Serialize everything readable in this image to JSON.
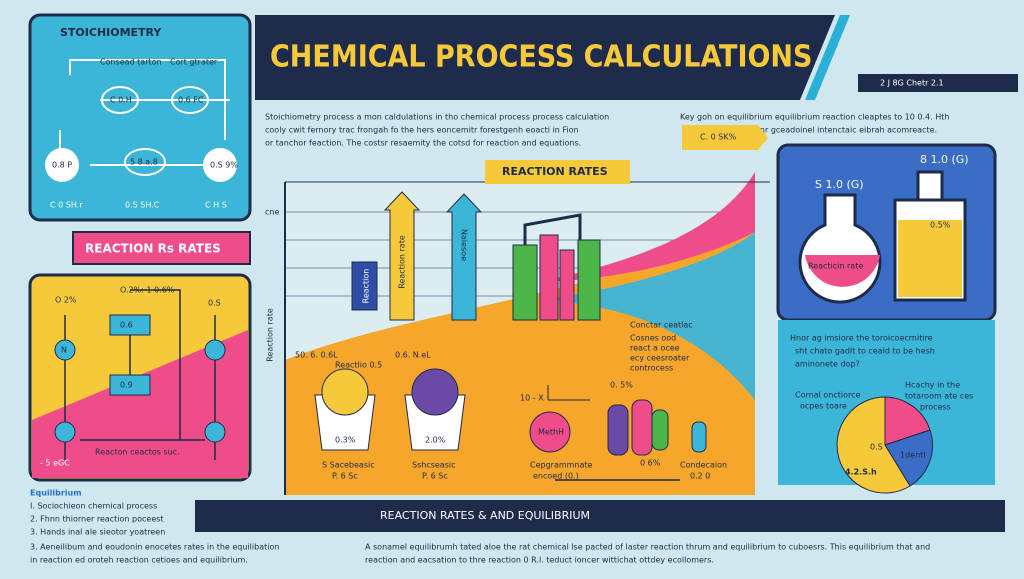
{
  "header": {
    "title": "CHEMICAL PROCESS CALCULATIONS",
    "tag": "2 J 8G Chetr 2.1"
  },
  "intro": {
    "lines": [
      "Stoichiometry process a mon caldulations in tho chemical process process calculation",
      "cooly cwit fernory trac frongah fo the hers eoncemitr forestgenh eoacti in Fion",
      "or tanchor feaction. The costsr resaemity the cotsd for reaction and equations."
    ]
  },
  "keynote": {
    "lines": [
      "Key goh on equilibrium equilibrium reaction cleaptes to 10 0.4. Hth",
      "beenr gceadoinel intenctaic eibrah acomreacte."
    ],
    "tag": "C. 0 SK%"
  },
  "stoichiometry": {
    "title": "STOICHIOMETRY",
    "labels": [
      "Consead tarton",
      "Cort gtrater",
      "C 0.H",
      "0.6 FC",
      "0.8 P",
      "5 8.a.8",
      "0.S 9%",
      "C 0 SH.r",
      "0.S SH.C",
      "C H S"
    ]
  },
  "reaction_box": {
    "title": "REACTION Rs RATES"
  },
  "left_panel": {
    "labels": [
      "O 2%",
      "O.2%: 1 0.6%",
      "0.S",
      "N",
      "0.6",
      "0.9",
      "- 5 eGC",
      "Reacton ceactos suc."
    ]
  },
  "chart": {
    "title": "REACTION RATES",
    "axis": "Reaction rate",
    "axis_top": "cne",
    "bar_labels": [
      "Reaction",
      "Reaction rate",
      "Naiesoe"
    ],
    "labels": [
      "Conctar ceatlac",
      "50. 6. 0.6L",
      "Reactlio 0.5",
      "0.6. N.eL",
      "0.3%",
      "2.0%",
      "S Sacebeasic",
      "P. 6 Sc",
      "Sshcseasic",
      "P. 6 Sc",
      "Cepgrammnate",
      "encoed (0.)",
      "Condecaion",
      "0.2 0",
      "Cosnes ood",
      "react a ocee",
      "ecy ceesroater",
      "controcess",
      "0. 5%",
      "MethH",
      "10 - X",
      "0 6%"
    ]
  },
  "flask_panel": {
    "labels": [
      "8 1.0 (G)",
      "S 1.0 (G)",
      "0.5%",
      "Reacticin rate"
    ]
  },
  "question": {
    "lines": [
      "Hnor ag imsiore the toroicoecrnitire",
      "sht chato gadlt to ceald to be hesh",
      "aminonete dop?"
    ]
  },
  "pie": {
    "labels": [
      "Cornal onctiorce",
      "ocpes toare",
      "Hcachy in the",
      "totaroom ate ces",
      "process",
      "0.S",
      "1dentl",
      "4.2.S.h"
    ]
  },
  "equilibrium": {
    "title": "Equilibrium",
    "items": [
      "I. Sociochieon chemical process",
      "2. Fhnn thiorner reaction poceest",
      "3. Hands inal ale sieotor yoatreen",
      "3. Aeneilibum and eoudonin enocetes rates in the equilibation",
      "in reaction ed oroteh reaction cetioes and equilibrium."
    ]
  },
  "footer": {
    "bar": "REACTION RATES & AND EQUILIBRIUM",
    "lines": [
      "A sonamel equilibrumh tated aloe the rat chemical lse pacted of laster reaction thrum and equilibrium to cuboesrs. This equilibrium that and",
      "reaction and eacsation to thre reaction 0 R.l. teduct ioncer wittichat ottdey ecollomers."
    ]
  }
}
